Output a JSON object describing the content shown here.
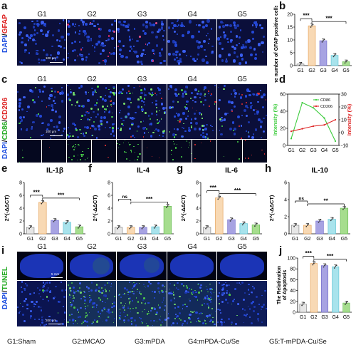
{
  "panels": {
    "a": "a",
    "b": "b",
    "c": "c",
    "d": "d",
    "e": "e",
    "f": "f",
    "g": "g",
    "h": "h",
    "i": "i",
    "j": "j"
  },
  "groups": [
    "G1",
    "G2",
    "G3",
    "G4",
    "G5"
  ],
  "stain_a": {
    "dapi": "DAPI",
    "sep": "/",
    "marker": "GFAP"
  },
  "stain_c": {
    "dapi": "DAPI",
    "sep1": "/",
    "m1": "CD86",
    "sep2": "/",
    "m2": "CD206"
  },
  "stain_i": {
    "dapi": "DAPI",
    "sep": "/",
    "marker": "TUNEL"
  },
  "scale_a": "100 μm",
  "scale_c": "100 μm",
  "scale_i_top": "5 mm",
  "scale_i_bottom": "200 μm",
  "sig": {
    "three": "***",
    "two": "**",
    "ns": "ns"
  },
  "legend_footer": [
    "G1:Sham",
    "G2:tMCAO",
    "G3:mPDA",
    "G4:mPDA-Cu/Se",
    "G5:T-mPDA-Cu/Se"
  ],
  "colors": {
    "g1": "#e6e6e6",
    "g2": "#f8d9b4",
    "g3": "#a7a3e2",
    "g4": "#a8e3ec",
    "g5": "#a6dd8e",
    "cd86": "#3ccc3c",
    "cd206": "#dd2222",
    "dapi": "#2050e0",
    "gfap": "#dd2222",
    "tunel": "#22cc22"
  },
  "chart_data": [
    {
      "id": "b",
      "type": "bar",
      "categories": [
        "G1",
        "G2",
        "G3",
        "G4",
        "G5"
      ],
      "values": [
        0.6,
        15.5,
        9.7,
        4.0,
        1.5
      ],
      "ylabel": "The number of GFAP positive cells/field",
      "ylim": [
        0,
        20
      ],
      "yticks": [
        0,
        5,
        10,
        15,
        20
      ],
      "sig": [
        [
          "G1",
          "G2",
          "***"
        ],
        [
          "G2",
          "G5",
          "***"
        ]
      ]
    },
    {
      "id": "d",
      "type": "line",
      "categories": [
        "G1",
        "G2",
        "G3",
        "G4",
        "G5"
      ],
      "series": [
        {
          "name": "CD86",
          "axis": "left",
          "values": [
            8,
            50,
            44,
            32,
            5
          ]
        },
        {
          "name": "CD206",
          "axis": "right",
          "values": [
            1,
            3,
            5,
            6,
            10
          ]
        }
      ],
      "ylabel_left": "Intensity (%)",
      "ylabel_right": "Intensity (%)",
      "ylim_left": [
        0,
        60
      ],
      "yticks_left": [
        0,
        20,
        40,
        60
      ],
      "ylim_right": [
        -10,
        30
      ],
      "yticks_right": [
        -10,
        0,
        10,
        20,
        30
      ]
    },
    {
      "id": "e",
      "type": "bar",
      "title": "IL-1β",
      "categories": [
        "G1",
        "G2",
        "G3",
        "G4",
        "G5"
      ],
      "values": [
        1.0,
        4.9,
        2.1,
        1.8,
        1.1
      ],
      "ylabel": "2^(-ΔΔCT)",
      "ylim": [
        0,
        8
      ],
      "yticks": [
        0,
        2,
        4,
        6,
        8
      ],
      "sig": [
        [
          "G1",
          "G2",
          "***"
        ],
        [
          "G2",
          "G5",
          "***"
        ]
      ]
    },
    {
      "id": "f",
      "type": "bar",
      "title": "IL-4",
      "categories": [
        "G1",
        "G2",
        "G3",
        "G4",
        "G5"
      ],
      "values": [
        1.0,
        1.0,
        1.0,
        1.1,
        4.3
      ],
      "ylabel": "2^(-ΔΔCT)",
      "ylim": [
        0,
        8
      ],
      "yticks": [
        0,
        2,
        4,
        6,
        8
      ],
      "sig": [
        [
          "G1",
          "G2",
          "ns"
        ],
        [
          "G2",
          "G5",
          "***"
        ]
      ]
    },
    {
      "id": "g",
      "type": "bar",
      "title": "IL-6",
      "categories": [
        "G1",
        "G2",
        "G3",
        "G4",
        "G5"
      ],
      "values": [
        1.0,
        5.6,
        2.2,
        1.6,
        1.4
      ],
      "ylabel": "2^(-ΔΔCT)",
      "ylim": [
        0,
        8
      ],
      "yticks": [
        0,
        2,
        4,
        6,
        8
      ],
      "sig": [
        [
          "G1",
          "G2",
          "***"
        ],
        [
          "G2",
          "G5",
          "***"
        ]
      ]
    },
    {
      "id": "h",
      "type": "bar",
      "title": "IL-10",
      "categories": [
        "G1",
        "G2",
        "G3",
        "G4",
        "G5"
      ],
      "values": [
        1.0,
        1.0,
        1.5,
        1.7,
        3.0
      ],
      "ylabel": "2^(-ΔΔCT)",
      "ylim": [
        0,
        6
      ],
      "yticks": [
        0,
        2,
        4,
        6
      ],
      "sig": [
        [
          "G1",
          "G2",
          "ns"
        ],
        [
          "G2",
          "G5",
          "**"
        ]
      ]
    },
    {
      "id": "j",
      "type": "bar",
      "categories": [
        "G1",
        "G2",
        "G3",
        "G4",
        "G5"
      ],
      "values": [
        15,
        90,
        86,
        84,
        17
      ],
      "ylabel": "The Relativation of Apoptosis",
      "ylim": [
        0,
        100
      ],
      "yticks": [
        0,
        20,
        40,
        60,
        80,
        100
      ],
      "sig": [
        [
          "G1",
          "G2",
          "***"
        ],
        [
          "G2",
          "G5",
          "***"
        ]
      ]
    }
  ]
}
